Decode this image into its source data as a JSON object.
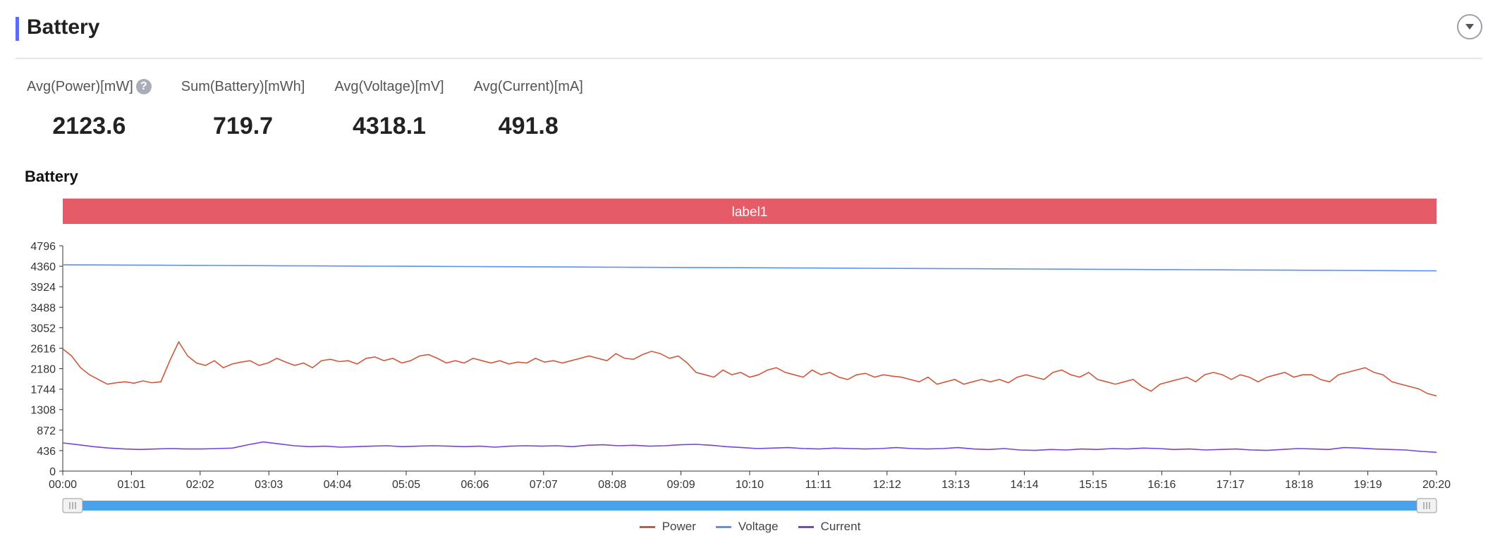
{
  "header": {
    "title": "Battery"
  },
  "metrics": [
    {
      "label": "Avg(Power)[mW]",
      "value": "2123.6",
      "help": "?"
    },
    {
      "label": "Sum(Battery)[mWh]",
      "value": "719.7"
    },
    {
      "label": "Avg(Voltage)[mV]",
      "value": "4318.1"
    },
    {
      "label": "Avg(Current)[mA]",
      "value": "491.8"
    }
  ],
  "chart_data": {
    "type": "line",
    "title": "Battery",
    "band_label": "label1",
    "yticks": [
      "0",
      "436",
      "872",
      "1308",
      "1744",
      "2180",
      "2616",
      "3052",
      "3488",
      "3924",
      "4360",
      "4796"
    ],
    "ylim": [
      0,
      4796
    ],
    "xticks": [
      "00:00",
      "01:01",
      "02:02",
      "03:03",
      "04:04",
      "05:05",
      "06:06",
      "07:07",
      "08:08",
      "09:09",
      "10:10",
      "11:11",
      "12:12",
      "13:13",
      "14:14",
      "15:15",
      "16:16",
      "17:17",
      "18:18",
      "19:19",
      "20:20"
    ],
    "series": [
      {
        "name": "Power",
        "color": "#d0573a",
        "values": [
          2600,
          2450,
          2200,
          2050,
          1950,
          1850,
          1880,
          1900,
          1870,
          1920,
          1880,
          1900,
          2350,
          2750,
          2450,
          2300,
          2250,
          2350,
          2200,
          2280,
          2320,
          2350,
          2250,
          2300,
          2400,
          2320,
          2250,
          2300,
          2200,
          2350,
          2380,
          2330,
          2350,
          2280,
          2400,
          2430,
          2350,
          2400,
          2300,
          2350,
          2450,
          2480,
          2400,
          2300,
          2350,
          2300,
          2400,
          2350,
          2300,
          2350,
          2280,
          2320,
          2300,
          2400,
          2320,
          2350,
          2300,
          2350,
          2400,
          2450,
          2400,
          2350,
          2500,
          2400,
          2380,
          2480,
          2550,
          2500,
          2400,
          2450,
          2300,
          2100,
          2050,
          2000,
          2150,
          2050,
          2100,
          2000,
          2050,
          2150,
          2200,
          2100,
          2050,
          2000,
          2150,
          2050,
          2100,
          2000,
          1950,
          2050,
          2080,
          2000,
          2050,
          2020,
          2000,
          1950,
          1900,
          2000,
          1850,
          1900,
          1950,
          1850,
          1900,
          1950,
          1900,
          1950,
          1880,
          2000,
          2050,
          2000,
          1950,
          2100,
          2150,
          2050,
          2000,
          2100,
          1950,
          1900,
          1850,
          1900,
          1950,
          1800,
          1700,
          1850,
          1900,
          1950,
          2000,
          1900,
          2050,
          2100,
          2050,
          1950,
          2050,
          2000,
          1900,
          2000,
          2050,
          2100,
          2000,
          2050,
          2050,
          1950,
          1900,
          2050,
          2100,
          2150,
          2200,
          2100,
          2050,
          1900,
          1850,
          1800,
          1750,
          1650,
          1600
        ]
      },
      {
        "name": "Voltage",
        "color": "#5b8ff9",
        "values": [
          4390,
          4388,
          4386,
          4383,
          4380,
          4377,
          4374,
          4371,
          4368,
          4365,
          4362,
          4360,
          4357,
          4354,
          4351,
          4348,
          4345,
          4342,
          4339,
          4336,
          4333,
          4330,
          4328,
          4326,
          4323,
          4320,
          4317,
          4314,
          4311,
          4308,
          4305,
          4302,
          4299,
          4296,
          4293,
          4290,
          4287,
          4284,
          4281,
          4278,
          4275,
          4272,
          4269,
          4266,
          4263
        ]
      },
      {
        "name": "Current",
        "color": "#7a3fe0",
        "values": [
          600,
          560,
          520,
          490,
          470,
          460,
          470,
          480,
          470,
          470,
          480,
          490,
          560,
          620,
          580,
          540,
          520,
          530,
          510,
          520,
          530,
          540,
          520,
          530,
          540,
          530,
          520,
          530,
          510,
          530,
          540,
          530,
          540,
          520,
          550,
          560,
          540,
          550,
          530,
          540,
          560,
          570,
          550,
          520,
          500,
          480,
          490,
          500,
          480,
          470,
          490,
          480,
          470,
          480,
          500,
          480,
          470,
          480,
          500,
          470,
          460,
          480,
          450,
          440,
          460,
          450,
          470,
          460,
          480,
          470,
          490,
          480,
          460,
          470,
          450,
          460,
          470,
          450,
          440,
          460,
          480,
          470,
          460,
          500,
          490,
          470,
          460,
          450,
          420,
          400
        ]
      }
    ]
  }
}
